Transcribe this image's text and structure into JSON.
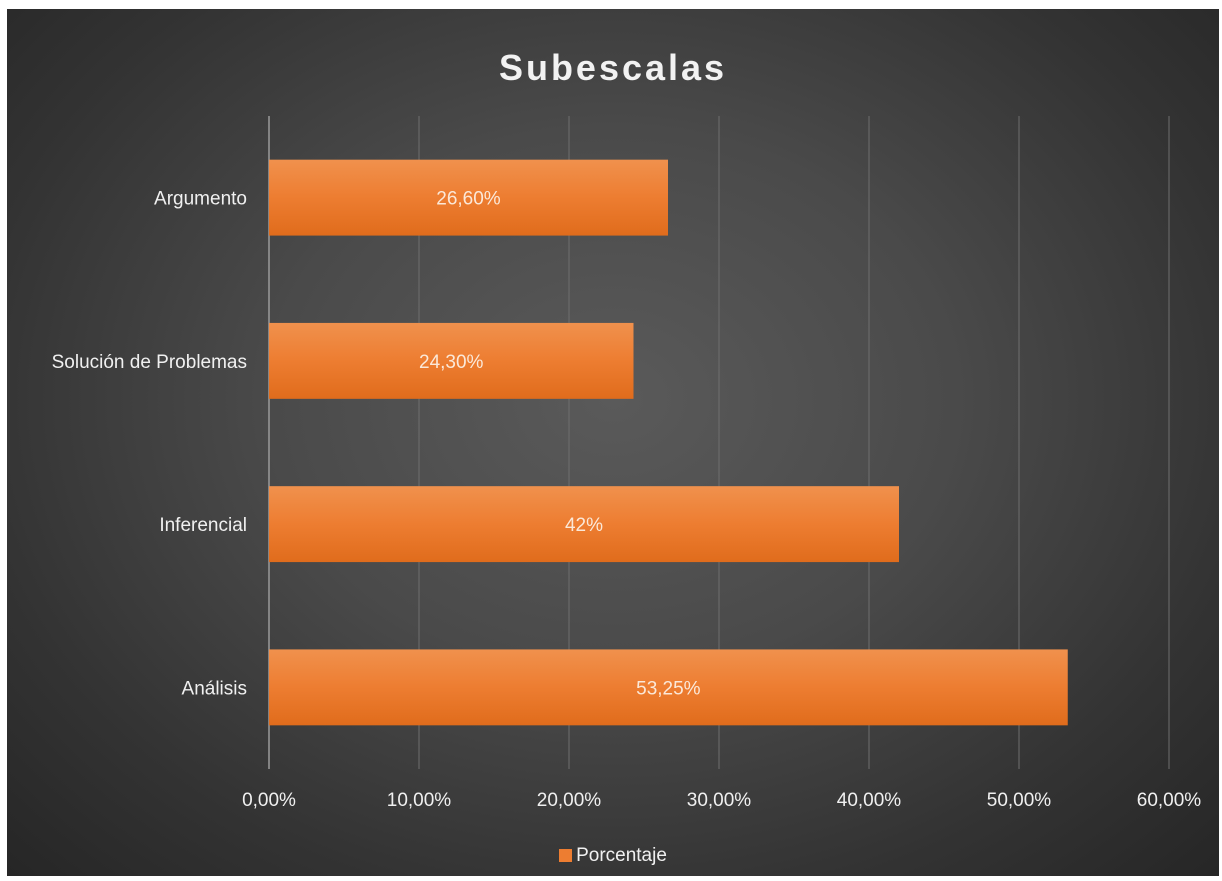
{
  "chart_data": {
    "type": "bar",
    "orientation": "horizontal",
    "title": "Subescalas",
    "categories": [
      "Análisis",
      "Inferencial",
      "Solución de Problemas",
      "Argumento"
    ],
    "series": [
      {
        "name": "Porcentaje",
        "values": [
          53.25,
          42,
          24.3,
          26.6
        ],
        "labels": [
          "53,25%",
          "42%",
          "24,30%",
          "26,60%"
        ],
        "color": "#ed7d31"
      }
    ],
    "xlim": [
      0,
      60
    ],
    "xticks": [
      0,
      10,
      20,
      30,
      40,
      50,
      60
    ],
    "xtick_labels": [
      "0,00%",
      "10,00%",
      "20,00%",
      "30,00%",
      "40,00%",
      "50,00%",
      "60,00%"
    ],
    "xlabel": "",
    "ylabel": "",
    "grid": "vertical",
    "legend_position": "bottom",
    "background": "dark-gradient"
  }
}
